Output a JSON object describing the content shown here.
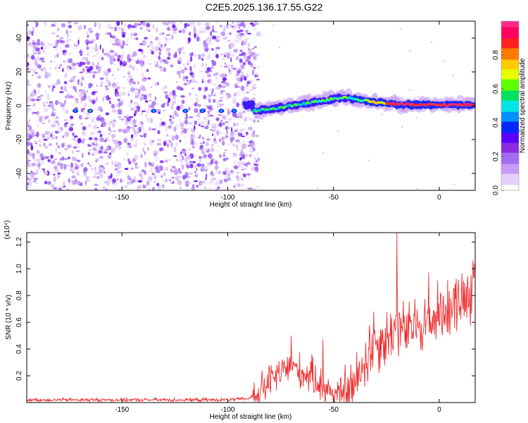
{
  "title": "C2E5.2025.136.17.55.G22",
  "chart_data": [
    {
      "type": "heatmap",
      "xlabel": "Height of straight line (km)",
      "ylabel": "Frequency (Hz)",
      "xlim": [
        -195,
        17
      ],
      "ylim": [
        -50,
        50
      ],
      "xticks": [
        -150,
        -100,
        -50,
        0
      ],
      "yticks": [
        -40,
        -20,
        0,
        20,
        40
      ],
      "noise_region_x": [
        -195,
        -88
      ],
      "signal_trace": [
        {
          "x": -88,
          "y": -3
        },
        {
          "x": -80,
          "y": -2
        },
        {
          "x": -70,
          "y": 0
        },
        {
          "x": -60,
          "y": 2
        },
        {
          "x": -50,
          "y": 4
        },
        {
          "x": -45,
          "y": 5
        },
        {
          "x": -40,
          "y": 4
        },
        {
          "x": -30,
          "y": 2
        },
        {
          "x": -20,
          "y": 1
        },
        {
          "x": -10,
          "y": 0.5
        },
        {
          "x": 0,
          "y": 0.5
        },
        {
          "x": 15,
          "y": 0.5
        }
      ],
      "colorbar": {
        "label": "Normalized spectral amplitude",
        "range": [
          0,
          1
        ],
        "ticks": [
          0.0,
          0.2,
          0.4,
          0.6,
          0.8
        ],
        "tick_labels": [
          "0.0",
          "0.2",
          "0.4",
          "0.6",
          "0.8"
        ],
        "colors": [
          "#ffffff",
          "#e4d0fb",
          "#c79bf5",
          "#a36df3",
          "#8a2be2",
          "#5a00ff",
          "#0028ff",
          "#0090ff",
          "#00e5e5",
          "#00e060",
          "#5eff00",
          "#e6ff00",
          "#ffcc00",
          "#ff7a00",
          "#ff2020",
          "#ff0060",
          "#ff2a8a"
        ]
      }
    },
    {
      "type": "line",
      "xlabel": "Height of straight line (km)",
      "ylabel": "SNR (10 * v/v)",
      "multiplier_label": "(x10⁴)",
      "xlim": [
        -195,
        17
      ],
      "ylim": [
        0,
        1.27
      ],
      "xticks": [
        -150,
        -100,
        -50,
        0
      ],
      "yticks": [
        0.2,
        0.4,
        0.6,
        0.8,
        1.0,
        1.2
      ],
      "ytick_labels": [
        "0.2",
        "0.4",
        "0.6",
        "0.8",
        "1.0",
        "1.2"
      ],
      "color": "#ee3030",
      "series_points": [
        {
          "x": -195,
          "y": 0.02
        },
        {
          "x": -150,
          "y": 0.02
        },
        {
          "x": -100,
          "y": 0.02
        },
        {
          "x": -90,
          "y": 0.03
        },
        {
          "x": -85,
          "y": 0.08
        },
        {
          "x": -80,
          "y": 0.16
        },
        {
          "x": -70,
          "y": 0.28
        },
        {
          "x": -65,
          "y": 0.22
        },
        {
          "x": -60,
          "y": 0.2
        },
        {
          "x": -55,
          "y": 0.12
        },
        {
          "x": -50,
          "y": 0.07
        },
        {
          "x": -45,
          "y": 0.06
        },
        {
          "x": -40,
          "y": 0.12
        },
        {
          "x": -37,
          "y": 0.25
        },
        {
          "x": -33,
          "y": 0.38
        },
        {
          "x": -30,
          "y": 0.45
        },
        {
          "x": -25,
          "y": 0.48
        },
        {
          "x": -20,
          "y": 0.58
        },
        {
          "x": -15,
          "y": 0.52
        },
        {
          "x": -10,
          "y": 0.6
        },
        {
          "x": -5,
          "y": 0.58
        },
        {
          "x": 0,
          "y": 0.68
        },
        {
          "x": 5,
          "y": 0.72
        },
        {
          "x": 10,
          "y": 0.78
        },
        {
          "x": 15,
          "y": 0.84
        },
        {
          "x": 17,
          "y": 0.86
        }
      ],
      "peaks": [
        {
          "x": -70,
          "y": 0.5
        },
        {
          "x": -55,
          "y": 0.47
        },
        {
          "x": -33,
          "y": 0.58
        },
        {
          "x": -31,
          "y": 0.68
        },
        {
          "x": -20,
          "y": 1.27
        },
        {
          "x": -5,
          "y": 0.97
        },
        {
          "x": 2,
          "y": 0.8
        },
        {
          "x": 15,
          "y": 0.95
        }
      ]
    }
  ]
}
